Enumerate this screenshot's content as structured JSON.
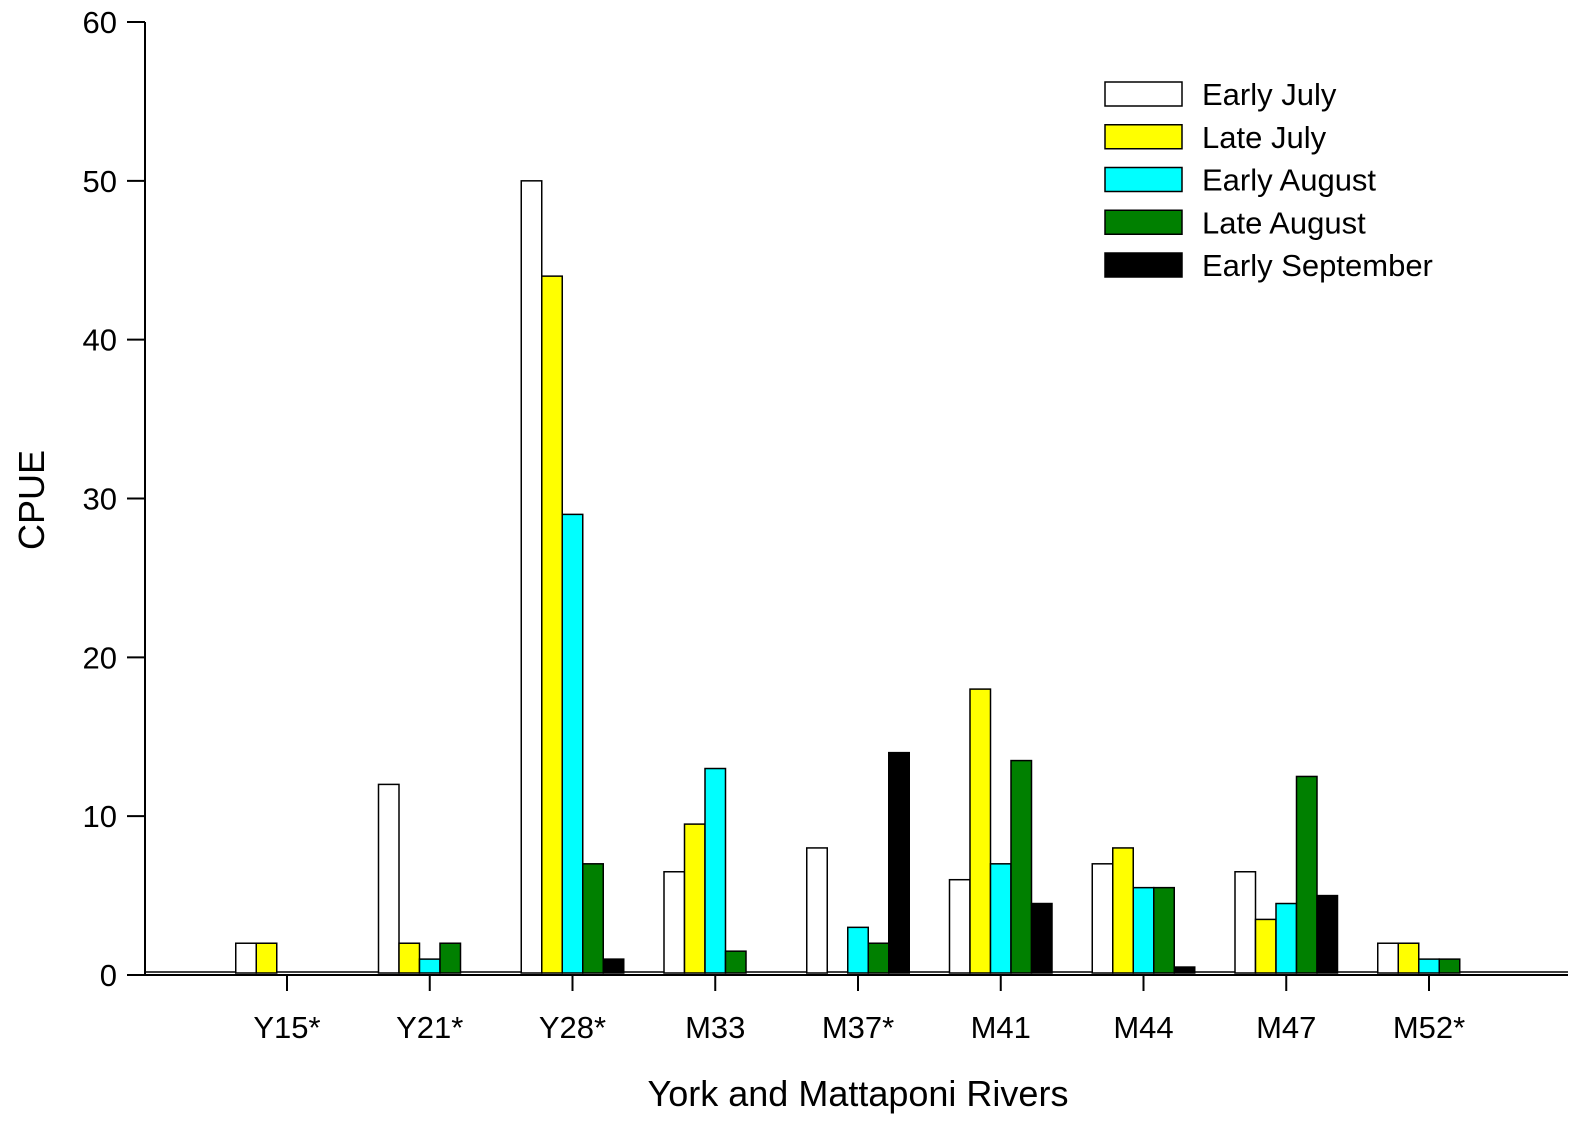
{
  "chart_data": {
    "type": "bar",
    "title": "",
    "xlabel": "York and Mattaponi Rivers",
    "ylabel": "CPUE",
    "ylim": [
      0,
      60
    ],
    "yticks": [
      0,
      10,
      20,
      30,
      40,
      50,
      60
    ],
    "grid": false,
    "legend_position": "top-right",
    "categories": [
      "Y15*",
      "Y21*",
      "Y28*",
      "M33",
      "M37*",
      "M41",
      "M44",
      "M47",
      "M52*"
    ],
    "series": [
      {
        "name": "Early July",
        "color": "#ffffff",
        "values": [
          2,
          12,
          50,
          6.5,
          8,
          6,
          7,
          6.5,
          2
        ]
      },
      {
        "name": "Late July",
        "color": "#ffff00",
        "values": [
          2,
          2,
          44,
          9.5,
          0,
          18,
          8,
          3.5,
          2
        ]
      },
      {
        "name": "Early August",
        "color": "#00ffff",
        "values": [
          0,
          1,
          29,
          13,
          3,
          7,
          5.5,
          4.5,
          1
        ]
      },
      {
        "name": "Late August",
        "color": "#008000",
        "values": [
          0,
          2,
          7,
          1.5,
          2,
          13.5,
          5.5,
          12.5,
          1
        ]
      },
      {
        "name": "Early September",
        "color": "#000000",
        "values": [
          0,
          0,
          1,
          0,
          14,
          4.5,
          0.5,
          5,
          0
        ]
      }
    ]
  }
}
